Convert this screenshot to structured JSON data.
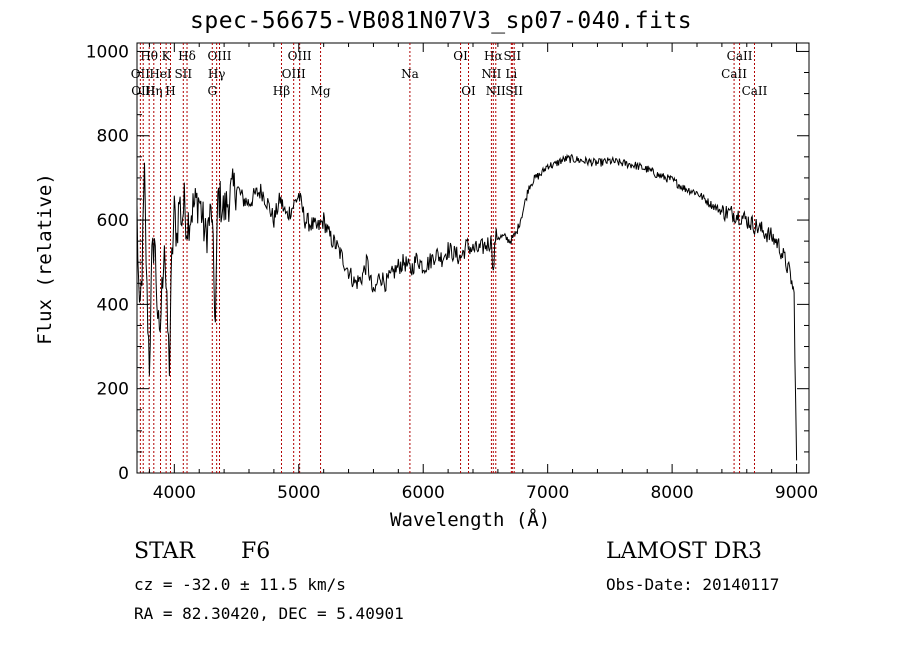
{
  "chart_data": {
    "type": "line",
    "title": "spec-56675-VB081N07V3_sp07-040.fits",
    "xlabel": "Wavelength (Å)",
    "ylabel": "Flux (relative)",
    "xlim": [
      3700,
      9100
    ],
    "ylim": [
      0,
      1020
    ],
    "xticks": [
      4000,
      5000,
      6000,
      7000,
      8000,
      9000
    ],
    "yticks": [
      0,
      200,
      400,
      600,
      800,
      1000
    ],
    "series": [
      {
        "name": "flux",
        "x": [
          3700,
          3720,
          3740,
          3760,
          3780,
          3800,
          3820,
          3840,
          3860,
          3880,
          3900,
          3920,
          3940,
          3960,
          3980,
          4000,
          4020,
          4040,
          4060,
          4080,
          4100,
          4150,
          4200,
          4250,
          4300,
          4330,
          4350,
          4400,
          4450,
          4500,
          4550,
          4600,
          4650,
          4700,
          4750,
          4800,
          4850,
          4900,
          4950,
          5000,
          5050,
          5100,
          5150,
          5200,
          5250,
          5300,
          5350,
          5400,
          5450,
          5500,
          5550,
          5600,
          5650,
          5700,
          5750,
          5800,
          5850,
          5900,
          5950,
          6000,
          6050,
          6100,
          6150,
          6200,
          6250,
          6300,
          6350,
          6400,
          6450,
          6500,
          6550,
          6563,
          6580,
          6600,
          6650,
          6700,
          6750,
          6800,
          6850,
          6900,
          6950,
          7000,
          7050,
          7100,
          7150,
          7200,
          7300,
          7400,
          7500,
          7600,
          7700,
          7800,
          7900,
          8000,
          8100,
          8200,
          8300,
          8400,
          8500,
          8550,
          8600,
          8650,
          8700,
          8750,
          8800,
          8850,
          8900,
          8950,
          8980,
          9000
        ],
        "values": [
          620,
          350,
          480,
          700,
          420,
          260,
          500,
          560,
          420,
          300,
          430,
          560,
          380,
          260,
          500,
          620,
          560,
          650,
          600,
          640,
          590,
          630,
          650,
          560,
          620,
          350,
          660,
          620,
          660,
          680,
          650,
          640,
          660,
          670,
          640,
          600,
          650,
          610,
          630,
          660,
          600,
          590,
          580,
          600,
          560,
          540,
          510,
          480,
          450,
          460,
          500,
          420,
          470,
          450,
          470,
          490,
          500,
          480,
          510,
          490,
          500,
          520,
          510,
          530,
          520,
          510,
          540,
          530,
          530,
          540,
          550,
          470,
          560,
          560,
          560,
          550,
          570,
          620,
          680,
          700,
          710,
          730,
          730,
          740,
          745,
          745,
          740,
          735,
          740,
          735,
          730,
          720,
          705,
          695,
          675,
          665,
          640,
          620,
          615,
          610,
          600,
          590,
          580,
          570,
          560,
          545,
          510,
          470,
          420,
          30
        ]
      }
    ],
    "lines": [
      {
        "label": "Hθ",
        "wave": 3798,
        "row": 0
      },
      {
        "label": "OII",
        "wave": 3727,
        "row": 1
      },
      {
        "label": "OIII",
        "wave": 3750,
        "row": 2
      },
      {
        "label": "Hη",
        "wave": 3835,
        "row": 2
      },
      {
        "label": "K",
        "wave": 3934,
        "row": 0
      },
      {
        "label": "HeI",
        "wave": 3889,
        "row": 1
      },
      {
        "label": "H",
        "wave": 3969,
        "row": 2
      },
      {
        "label": "SII",
        "wave": 4072,
        "row": 1
      },
      {
        "label": "Hδ",
        "wave": 4102,
        "row": 0
      },
      {
        "label": "OIII",
        "wave": 4363,
        "row": 0
      },
      {
        "label": "Hγ",
        "wave": 4340,
        "row": 1
      },
      {
        "label": "G",
        "wave": 4305,
        "row": 2
      },
      {
        "label": "Hβ",
        "wave": 4861,
        "row": 2
      },
      {
        "label": "OIII",
        "wave": 5007,
        "row": 0
      },
      {
        "label": "OIII",
        "wave": 4959,
        "row": 1
      },
      {
        "label": "Mg",
        "wave": 5175,
        "row": 2
      },
      {
        "label": "Na",
        "wave": 5893,
        "row": 1
      },
      {
        "label": "OI",
        "wave": 6300,
        "row": 0
      },
      {
        "label": "OI",
        "wave": 6364,
        "row": 2
      },
      {
        "label": "Hα",
        "wave": 6563,
        "row": 0
      },
      {
        "label": "NII",
        "wave": 6548,
        "row": 1
      },
      {
        "label": "NII",
        "wave": 6583,
        "row": 2
      },
      {
        "label": "SII",
        "wave": 6716,
        "row": 0
      },
      {
        "label": "Li",
        "wave": 6708,
        "row": 1
      },
      {
        "label": "SII",
        "wave": 6731,
        "row": 2
      },
      {
        "label": "CaII",
        "wave": 8542,
        "row": 0
      },
      {
        "label": "CaII",
        "wave": 8498,
        "row": 1
      },
      {
        "label": "CaII",
        "wave": 8662,
        "row": 2
      }
    ]
  },
  "info": {
    "object_type": "STAR",
    "subclass": "F6",
    "survey": "LAMOST DR3",
    "redshift": "cz = -32.0 ± 11.5 km/s",
    "obs_date": "Obs-Date: 20140117",
    "coords": "RA =  82.30420, DEC =   5.40901"
  },
  "colors": {
    "line_marker": "#b00000",
    "spectrum": "#000000"
  }
}
